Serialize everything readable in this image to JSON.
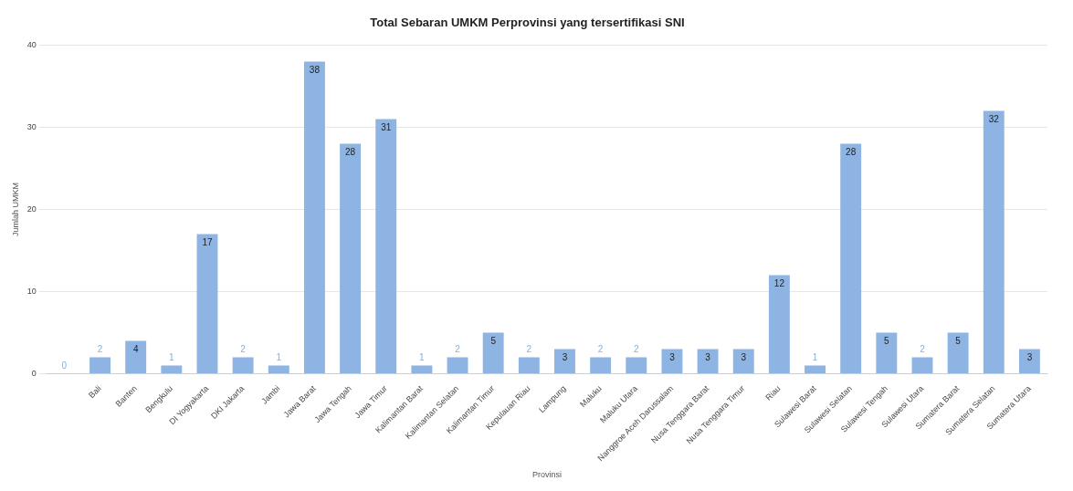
{
  "chart_data": {
    "type": "bar",
    "title": "Total Sebaran UMKM Perprovinsi yang tersertifikasi SNI",
    "xlabel": "Provinsi",
    "ylabel": "Jumlah UMKM",
    "categories": [
      null,
      "Bali",
      "Banten",
      "Bengkulu",
      "DI Yogyakarta",
      "DKI Jakarta",
      "Jambi",
      "Jawa Barat",
      "Jawa Tengah",
      "Jawa Timur",
      "Kalimantan Barat",
      "Kalimantan Selatan",
      "Kalimantan Timur",
      "Kepulauan Riau",
      "Lampung",
      "Maluku",
      "Maluku Utara",
      "Nanggroe Aceh Darussalam",
      "Nusa Tenggara Barat",
      "Nusa Tenggara Timur",
      "Riau",
      "Sulawesi Barat",
      "Sulawesi Selatan",
      "Sulawesi Tengah",
      "Sulawesi Utara",
      "Sumatera Barat",
      "Sumatera Selatan",
      "Sumatera Utara"
    ],
    "values": [
      0,
      2,
      4,
      1,
      17,
      2,
      1,
      38,
      28,
      31,
      1,
      2,
      5,
      2,
      3,
      2,
      2,
      3,
      3,
      3,
      12,
      1,
      28,
      5,
      2,
      5,
      32,
      3
    ],
    "color": "#8db4e2",
    "ylim": [
      0,
      40
    ],
    "yticks": [
      0,
      10,
      20,
      30,
      40
    ],
    "grid": "y",
    "data_labels": true
  }
}
